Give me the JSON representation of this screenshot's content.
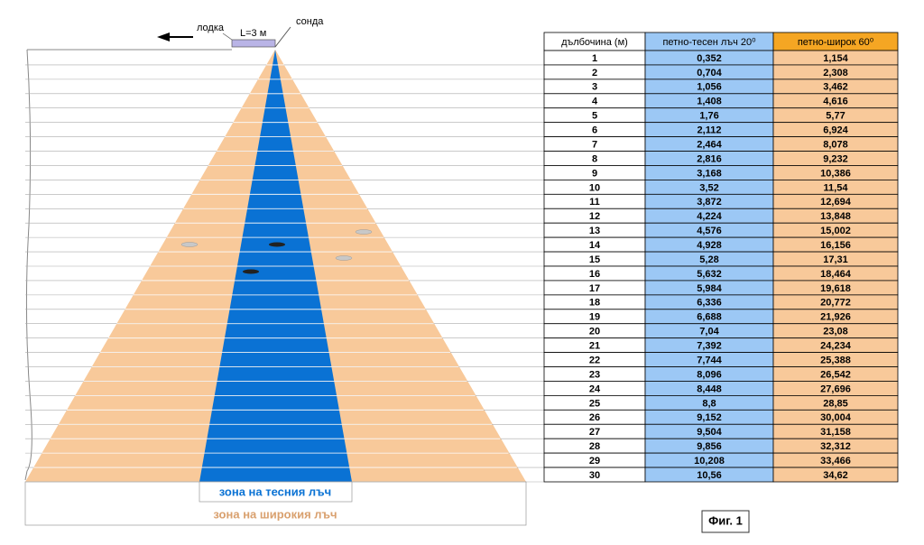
{
  "labels": {
    "boat": "лодка",
    "length": "L=3 м",
    "probe": "сонда",
    "narrow_zone": "зона на тесния лъч",
    "wide_zone": "зона на широкия лъч",
    "figure": "Фиг. 1"
  },
  "table": {
    "header": [
      "дълбочина (м)",
      "петно-тесен лъч 20⁰",
      "петно-широк 60⁰"
    ],
    "rows": [
      [
        1,
        "0,352",
        "1,154"
      ],
      [
        2,
        "0,704",
        "2,308"
      ],
      [
        3,
        "1,056",
        "3,462"
      ],
      [
        4,
        "1,408",
        "4,616"
      ],
      [
        5,
        "1,76",
        "5,77"
      ],
      [
        6,
        "2,112",
        "6,924"
      ],
      [
        7,
        "2,464",
        "8,078"
      ],
      [
        8,
        "2,816",
        "9,232"
      ],
      [
        9,
        "3,168",
        "10,386"
      ],
      [
        10,
        "3,52",
        "11,54"
      ],
      [
        11,
        "3,872",
        "12,694"
      ],
      [
        12,
        "4,224",
        "13,848"
      ],
      [
        13,
        "4,576",
        "15,002"
      ],
      [
        14,
        "4,928",
        "16,156"
      ],
      [
        15,
        "5,28",
        "17,31"
      ],
      [
        16,
        "5,632",
        "18,464"
      ],
      [
        17,
        "5,984",
        "19,618"
      ],
      [
        18,
        "6,336",
        "20,772"
      ],
      [
        19,
        "6,688",
        "21,926"
      ],
      [
        20,
        "7,04",
        "23,08"
      ],
      [
        21,
        "7,392",
        "24,234"
      ],
      [
        22,
        "7,744",
        "25,388"
      ],
      [
        23,
        "8,096",
        "26,542"
      ],
      [
        24,
        "8,448",
        "27,696"
      ],
      [
        25,
        "8,8",
        "28,85"
      ],
      [
        26,
        "9,152",
        "30,004"
      ],
      [
        27,
        "9,504",
        "31,158"
      ],
      [
        28,
        "9,856",
        "32,312"
      ],
      [
        29,
        "10,208",
        "33,466"
      ],
      [
        30,
        "10,56",
        "34,62"
      ]
    ]
  }
}
